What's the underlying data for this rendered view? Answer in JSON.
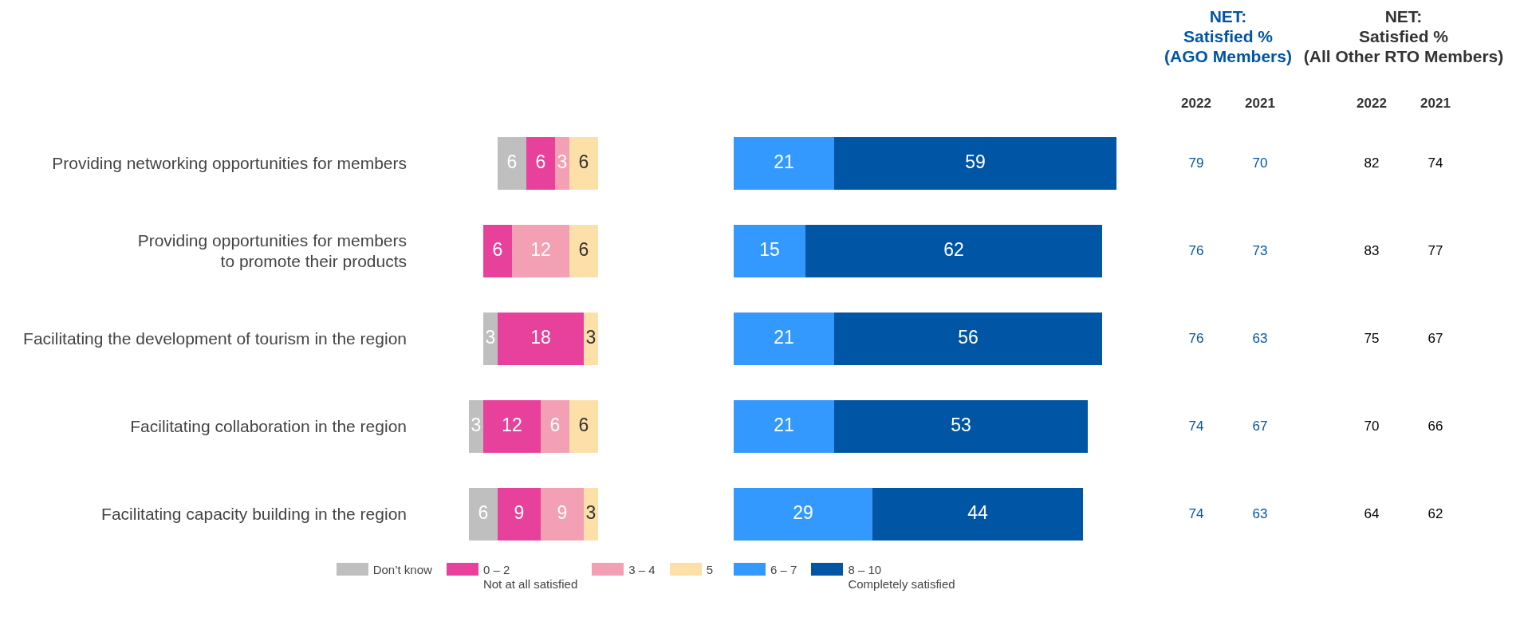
{
  "chart_data": [
    {
      "type": "bar",
      "orientation": "horizontal",
      "stacked": true,
      "categories": [
        "Providing networking opportunities for members",
        "Providing opportunities for members\nto promote their products",
        "Facilitating the development of tourism in the region",
        "Facilitating collaboration in the region",
        "Facilitating capacity building in the region"
      ],
      "series": [
        {
          "name": "5",
          "color": "#fde0a8",
          "values": [
            6,
            6,
            3,
            6,
            3
          ]
        },
        {
          "name": "3 – 4",
          "color": "#f4a0b4",
          "values": [
            3,
            12,
            null,
            6,
            9
          ]
        },
        {
          "name": "0 – 2\nNot at all satisfied",
          "color": "#e8419b",
          "values": [
            6,
            6,
            18,
            12,
            9
          ]
        },
        {
          "name": "Don’t know",
          "color": "#bfbfbf",
          "values": [
            6,
            null,
            3,
            3,
            6
          ]
        }
      ],
      "xlim": [
        27,
        0
      ],
      "data_labels": true,
      "tick_labels": "y",
      "legend": "bottom"
    },
    {
      "type": "bar",
      "orientation": "horizontal",
      "stacked": true,
      "categories": [
        null,
        null,
        null,
        null,
        null
      ],
      "series": [
        {
          "name": "6 – 7",
          "color": "#3399ff",
          "values": [
            21,
            15,
            21,
            21,
            29
          ]
        },
        {
          "name": "8 – 10\nCompletely satisfied",
          "color": "#0055a5",
          "values": [
            59,
            62,
            56,
            53,
            44
          ]
        }
      ],
      "xlim": [
        0,
        80
      ],
      "data_labels": true,
      "tick_labels": false,
      "legend": "bottom"
    },
    {
      "type": "other",
      "title": "NET:\nSatisfied %\n(AGO Members)",
      "categories": [
        "2022",
        "2021"
      ],
      "annotations": [
        "79",
        "70",
        "76",
        "73",
        "76",
        "63",
        "74",
        "67",
        "74",
        "63"
      ]
    },
    {
      "type": "other",
      "title": "NET:\nSatisfied %\n(All Other RTO Members)",
      "categories": [
        "2022",
        "2021"
      ],
      "annotations": [
        "82",
        "74",
        "83",
        "77",
        "75",
        "67",
        "70",
        "66",
        "64",
        "62"
      ]
    }
  ]
}
